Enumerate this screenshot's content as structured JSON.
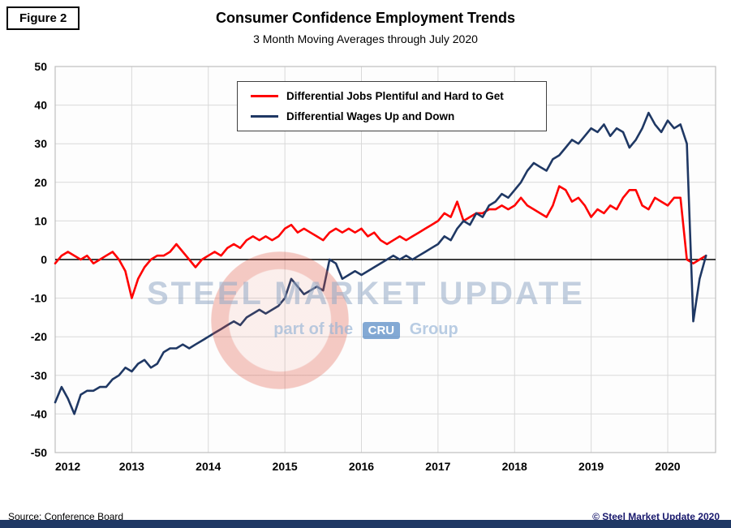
{
  "figure_label": "Figure 2",
  "title": "Consumer Confidence Employment Trends",
  "subtitle": "3 Month Moving Averages through July 2020",
  "source": "Source: Conference Board",
  "copyright": "© Steel Market Update 2020",
  "watermark": {
    "main": "STEEL MARKET UPDATE",
    "sub_prefix": "part of the",
    "sub_box": "CRU",
    "sub_suffix": "Group"
  },
  "colors": {
    "jobs_line": "#ff0000",
    "wages_line": "#1f3864",
    "grid": "#d9d9d9",
    "frame": "#bfbfbf",
    "zero_line": "#000000",
    "bottom_bar": "#1f3864"
  },
  "chart_data": {
    "type": "line",
    "title": "Consumer Confidence Employment Trends",
    "subtitle": "3 Month Moving Averages through July 2020",
    "xlabel": "",
    "ylabel": "",
    "ylim": [
      -50,
      50
    ],
    "y_ticks": [
      50,
      40,
      30,
      20,
      10,
      0,
      -10,
      -20,
      -30,
      -40,
      -50
    ],
    "x_tick_labels": [
      "2012",
      "2013",
      "2014",
      "2015",
      "2016",
      "2017",
      "2018",
      "2019",
      "2020"
    ],
    "x_tick_months": [
      0,
      12,
      24,
      36,
      48,
      60,
      72,
      84,
      96
    ],
    "x_domain_months": [
      0,
      103.5
    ],
    "x_start": "2012-01",
    "x_end": "2020-07",
    "grid": true,
    "legend_position": "top-center-inside",
    "series": [
      {
        "name": "Differential Jobs Plentiful and Hard to Get",
        "color": "#ff0000",
        "values": [
          -1,
          1,
          2,
          1,
          0,
          1,
          -1,
          0,
          1,
          2,
          0,
          -3,
          -10,
          -5,
          -2,
          0,
          1,
          1,
          2,
          4,
          2,
          0,
          -2,
          0,
          1,
          2,
          1,
          3,
          4,
          3,
          5,
          6,
          5,
          6,
          5,
          6,
          8,
          9,
          7,
          8,
          7,
          6,
          5,
          7,
          8,
          7,
          8,
          7,
          8,
          6,
          7,
          5,
          4,
          5,
          6,
          5,
          6,
          7,
          8,
          9,
          10,
          12,
          11,
          15,
          10,
          11,
          12,
          12,
          13,
          13,
          14,
          13,
          14,
          16,
          14,
          13,
          12,
          11,
          14,
          19,
          18,
          15,
          16,
          14,
          11,
          13,
          12,
          14,
          13,
          16,
          18,
          18,
          14,
          13,
          16,
          15,
          14,
          16,
          16,
          0,
          -1,
          0,
          1
        ]
      },
      {
        "name": "Differential Wages Up and Down",
        "color": "#1f3864",
        "values": [
          -37,
          -33,
          -36,
          -40,
          -35,
          -34,
          -34,
          -33,
          -33,
          -31,
          -30,
          -28,
          -29,
          -27,
          -26,
          -28,
          -27,
          -24,
          -23,
          -23,
          -22,
          -23,
          -22,
          -21,
          -20,
          -19,
          -18,
          -17,
          -16,
          -17,
          -15,
          -14,
          -13,
          -14,
          -13,
          -12,
          -10,
          -5,
          -7,
          -9,
          -8,
          -7,
          -8,
          0,
          -1,
          -5,
          -4,
          -3,
          -4,
          -3,
          -2,
          -1,
          0,
          1,
          0,
          1,
          0,
          1,
          2,
          3,
          4,
          6,
          5,
          8,
          10,
          9,
          12,
          11,
          14,
          15,
          17,
          16,
          18,
          20,
          23,
          25,
          24,
          23,
          26,
          27,
          29,
          31,
          30,
          32,
          34,
          33,
          35,
          32,
          34,
          33,
          29,
          31,
          34,
          38,
          35,
          33,
          36,
          34,
          35,
          30,
          -16,
          -5,
          1
        ]
      }
    ]
  }
}
